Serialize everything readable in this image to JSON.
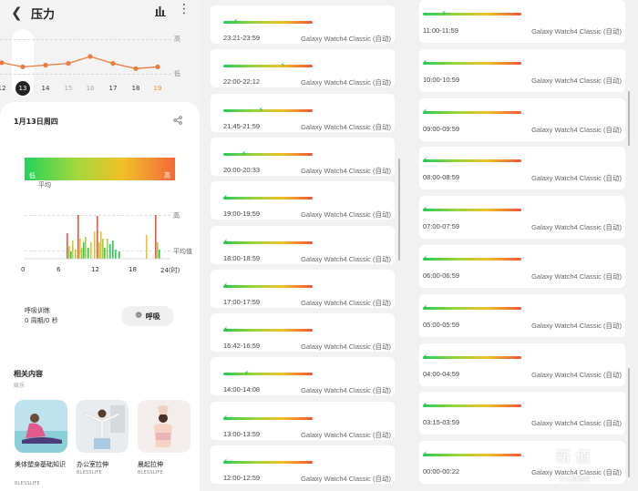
{
  "header": {
    "title": "压力",
    "back_icon": "back-arrow-icon",
    "chart_icon": "bar-chart-icon",
    "more_icon": "more-vertical-icon"
  },
  "trend": {
    "high_label": "高",
    "low_label": "低",
    "days": [
      "12",
      "13",
      "14",
      "15",
      "16",
      "17",
      "18",
      "19"
    ],
    "selected_day": "13",
    "values": [
      0.32,
      0.2,
      0.25,
      0.3,
      0.5,
      0.3,
      0.15,
      0.2
    ],
    "line_color": "#f07a3c"
  },
  "detail": {
    "date": "1月13日周四",
    "share_icon": "share-icon",
    "scale_low": "低",
    "scale_high": "高",
    "average_label": "平均",
    "chart_high_label": "高",
    "chart_avg_label": "平均值",
    "ticks": [
      "0",
      "6",
      "12",
      "18",
      "24(时)"
    ]
  },
  "breathing": {
    "title": "呼吸训练",
    "value": "0 周期/0 秒",
    "button_label": "呼吸",
    "button_icon": "breath-icon"
  },
  "related": {
    "title": "相关内容",
    "subtitle": "娱乐",
    "items": [
      {
        "caption": "美体塑身基础知识",
        "source": "BLESSLIFE"
      },
      {
        "caption": "办公室拉伸",
        "source": "BLESSLIFE"
      },
      {
        "caption": "晨起拉伸",
        "source": "BLESSLIFE"
      }
    ]
  },
  "list_middle": [
    {
      "time": "23:21-23:59",
      "device": "Galaxy Watch4 Classic (自动)",
      "level": 0.12
    },
    {
      "time": "22:00-22:12",
      "device": "Galaxy Watch4 Classic (自动)",
      "level": 0.68
    },
    {
      "time": "21:45-21:59",
      "device": "Galaxy Watch4 Classic (自动)",
      "level": 0.42
    },
    {
      "time": "20:00-20:33",
      "device": "Galaxy Watch4 Classic (自动)",
      "level": 0.22
    },
    {
      "time": "19:00-19:59",
      "device": "Galaxy Watch4 Classic (自动)",
      "level": 0.0
    },
    {
      "time": "18:00-18:59",
      "device": "Galaxy Watch4 Classic (自动)",
      "level": 0.0
    },
    {
      "time": "17:00-17:59",
      "device": "Galaxy Watch4 Classic (自动)",
      "level": 0.0
    },
    {
      "time": "16:42-16:59",
      "device": "Galaxy Watch4 Classic (自动)",
      "level": 0.0
    },
    {
      "time": "14:00-14:08",
      "device": "Galaxy Watch4 Classic (自动)",
      "level": 0.25
    },
    {
      "time": "13:00-13:59",
      "device": "Galaxy Watch4 Classic (自动)",
      "level": 0.0
    },
    {
      "time": "12:00-12:59",
      "device": "Galaxy Watch4 Classic (自动)",
      "level": 0.0
    }
  ],
  "list_right": [
    {
      "time": "11:00-11:59",
      "device": "Galaxy Watch4 Classic (自动)",
      "level": 0.2
    },
    {
      "time": "10:00-10:59",
      "device": "Galaxy Watch4 Classic (自动)",
      "level": 0.0
    },
    {
      "time": "09:00-09:59",
      "device": "Galaxy Watch4 Classic (自动)",
      "level": 0.0
    },
    {
      "time": "08:00-08:59",
      "device": "Galaxy Watch4 Classic (自动)",
      "level": 0.0
    },
    {
      "time": "07:00-07:59",
      "device": "Galaxy Watch4 Classic (自动)",
      "level": 0.0
    },
    {
      "time": "06:00-06:59",
      "device": "Galaxy Watch4 Classic (自动)",
      "level": 0.0
    },
    {
      "time": "05:00-05:59",
      "device": "Galaxy Watch4 Classic (自动)",
      "level": 0.0
    },
    {
      "time": "04:00-04:59",
      "device": "Galaxy Watch4 Classic (自动)",
      "level": 0.0
    },
    {
      "time": "03:15-03:59",
      "device": "Galaxy Watch4 Classic (自动)",
      "level": 0.0
    },
    {
      "time": "00:00-00:22",
      "device": "Galaxy Watch4 Classic (自动)",
      "level": 0.0
    }
  ],
  "watermark": {
    "main": "新 值",
    "sub": "什么值得买"
  }
}
